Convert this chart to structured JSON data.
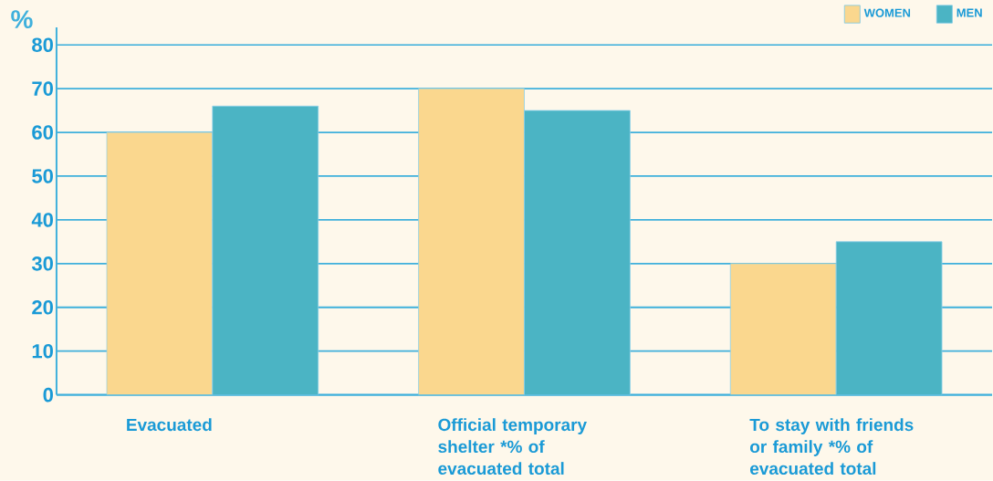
{
  "chart_data": {
    "type": "bar",
    "ylabel": "%",
    "categories": [
      "Evacuated",
      "Official temporary shelter *% of evacuated total",
      "To stay with friends or family *% of evacuated total"
    ],
    "series": [
      {
        "name": "WOMEN",
        "color": "#fad78e",
        "values": [
          60,
          70,
          30
        ]
      },
      {
        "name": "MEN",
        "color": "#4bb4c4",
        "values": [
          66,
          65,
          35
        ]
      }
    ],
    "ylim": [
      0,
      84
    ],
    "yticks": [
      0,
      10,
      20,
      30,
      40,
      50,
      60,
      70,
      80
    ],
    "grid": "y",
    "legend": "top right"
  }
}
